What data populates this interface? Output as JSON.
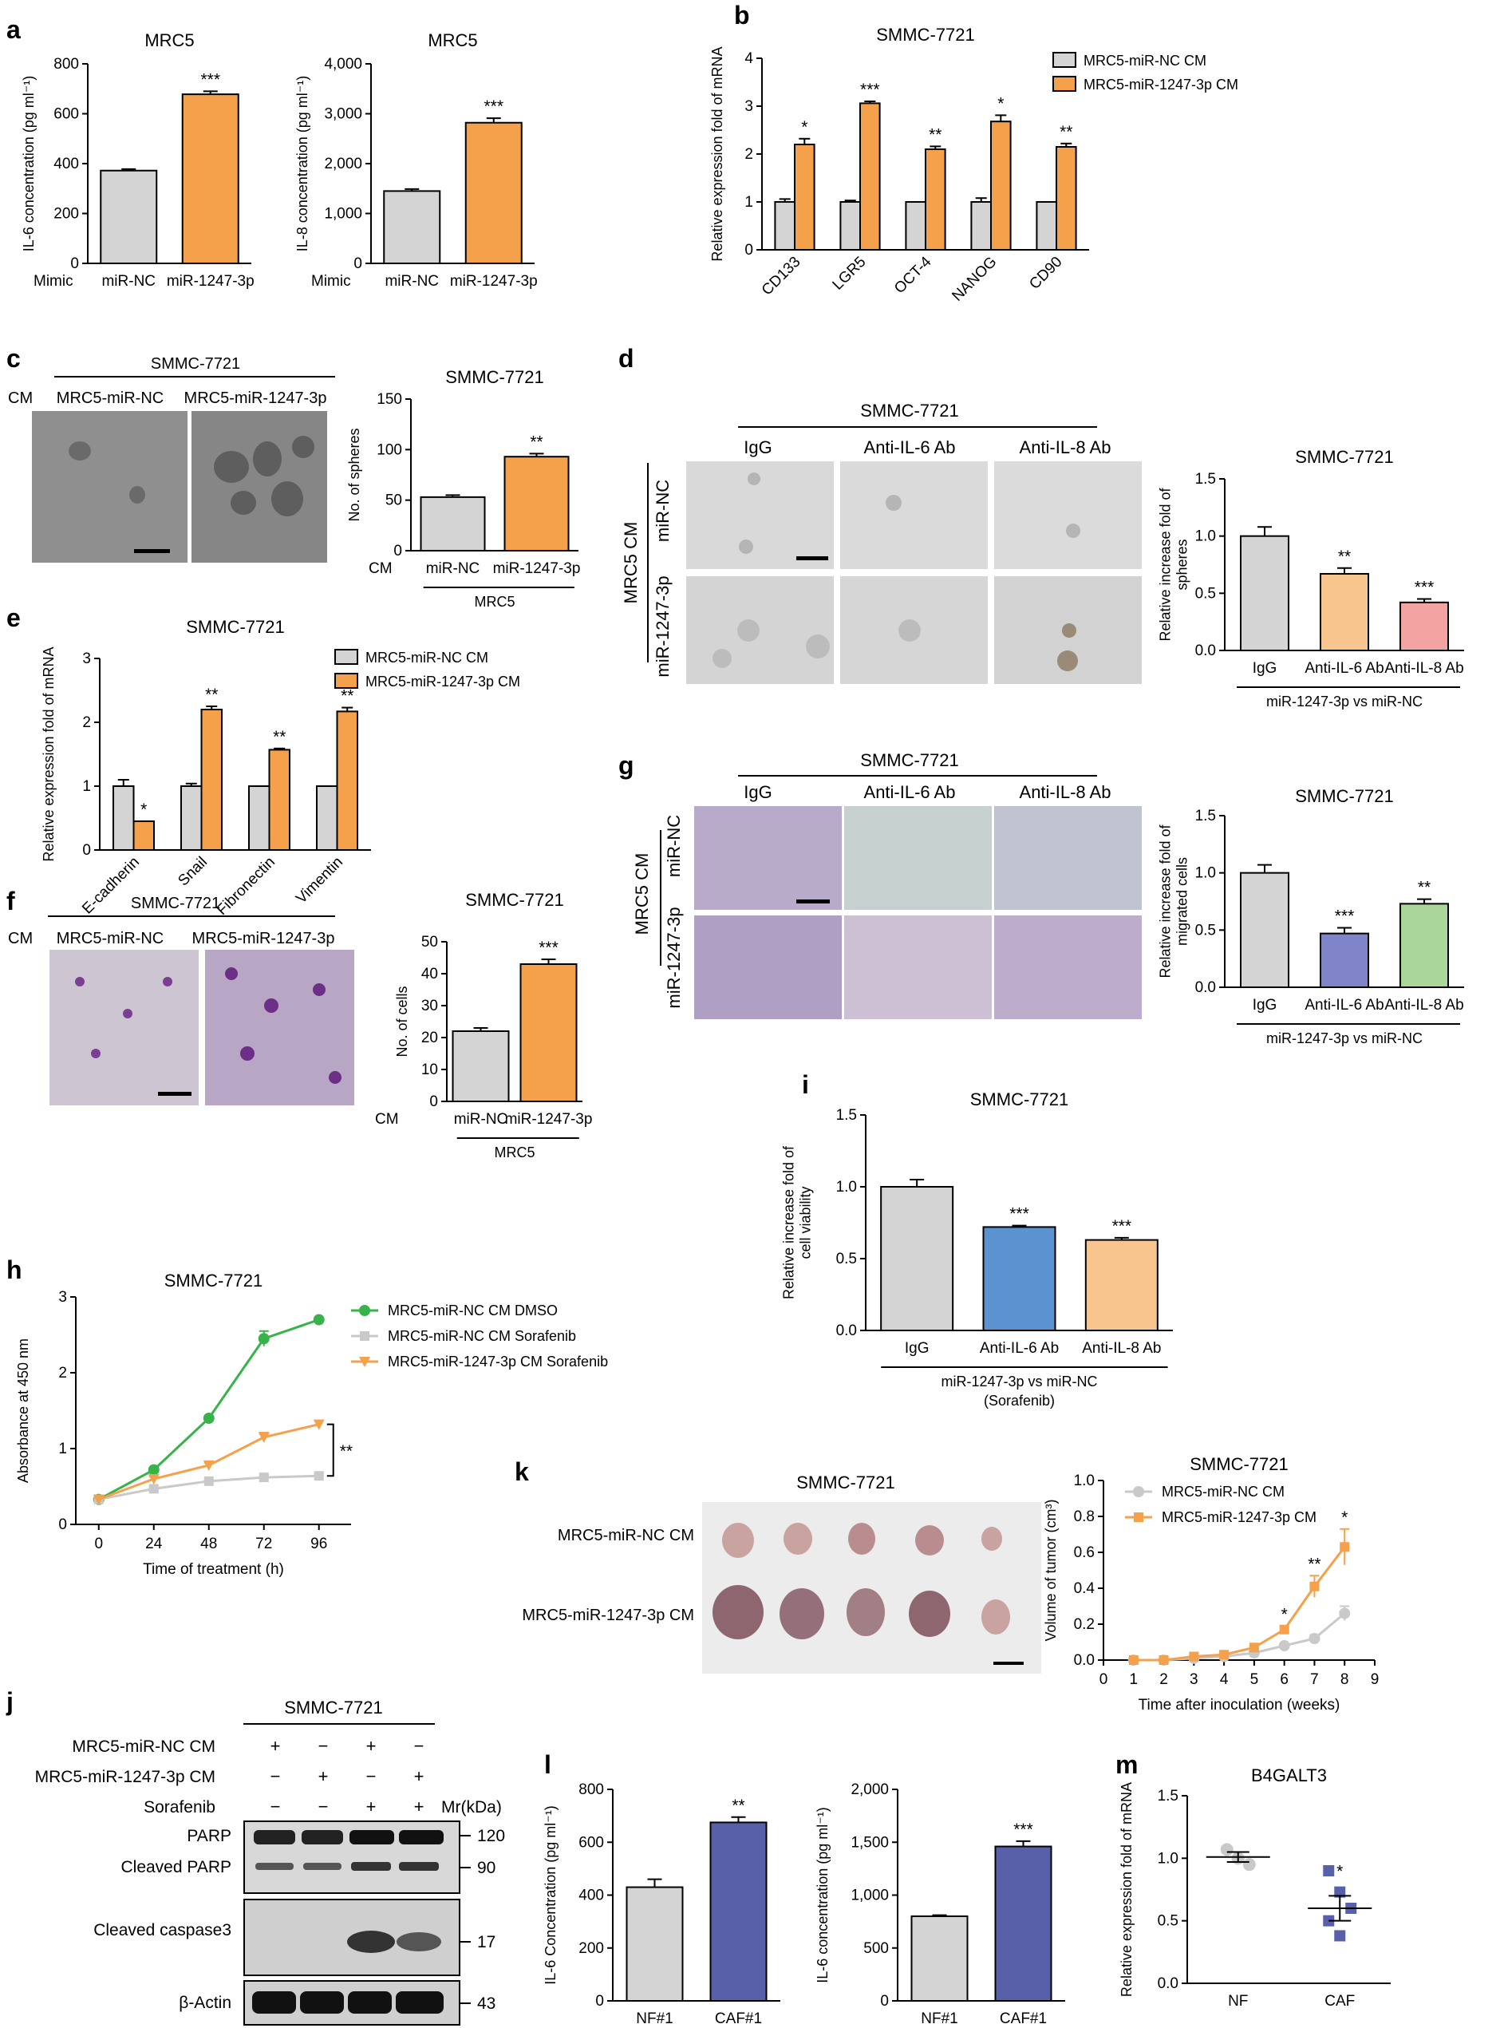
{
  "colors": {
    "gray": "#d4d4d4",
    "orange": "#f5a04a",
    "light_orange": "#f8c58f",
    "pink": "#f4a3a3",
    "blue": "#7f85c8",
    "green": "#a9d79a",
    "steel_blue": "#5b93d1",
    "navy": "#5760a8",
    "dmso_green": "#37b34a",
    "sor_gray": "#c9c9c9",
    "sor_orange": "#f5a04a"
  },
  "panels": {
    "a": "a",
    "b": "b",
    "c": "c",
    "d": "d",
    "e": "e",
    "f": "f",
    "g": "g",
    "h": "h",
    "i": "i",
    "j": "j",
    "k": "k",
    "l": "l",
    "m": "m"
  },
  "chart_data": [
    {
      "id": "a1",
      "type": "bar",
      "title": "MRC5",
      "ylabel": "IL-6 concentration (pg ml⁻¹)",
      "row_label": "Mimic",
      "categories": [
        "miR-NC",
        "miR-1247-3p"
      ],
      "values": [
        372,
        678
      ],
      "errors": [
        6,
        12
      ],
      "stars": [
        "",
        "***"
      ],
      "yticks": [
        "0",
        "200",
        "400",
        "600",
        "800"
      ],
      "ylim": [
        0,
        800
      ]
    },
    {
      "id": "a2",
      "type": "bar",
      "title": "MRC5",
      "ylabel": "IL-8 concentration (pg ml⁻¹)",
      "row_label": "Mimic",
      "categories": [
        "miR-NC",
        "miR-1247-3p"
      ],
      "values": [
        1450,
        2820
      ],
      "errors": [
        40,
        90
      ],
      "stars": [
        "",
        "***"
      ],
      "yticks": [
        "0",
        "1,000",
        "2,000",
        "3,000",
        "4,000"
      ],
      "ylim": [
        0,
        4000
      ]
    },
    {
      "id": "b",
      "type": "bar",
      "title": "SMMC-7721",
      "ylabel": "Relative expression fold of mRNA",
      "categories": [
        "CD133",
        "LGR5",
        "OCT-4",
        "NANOG",
        "CD90"
      ],
      "series": [
        {
          "name": "MRC5-miR-NC CM",
          "values": [
            1.0,
            1.0,
            1.0,
            1.0,
            1.0
          ],
          "errors": [
            0.06,
            0.03,
            0.0,
            0.08,
            0.0
          ]
        },
        {
          "name": "MRC5-miR-1247-3p CM",
          "values": [
            2.2,
            3.06,
            2.1,
            2.68,
            2.15
          ],
          "errors": [
            0.12,
            0.04,
            0.06,
            0.13,
            0.07
          ]
        }
      ],
      "stars": [
        "*",
        "***",
        "**",
        "*",
        "**"
      ],
      "yticks": [
        "0",
        "1",
        "2",
        "3",
        "4"
      ],
      "ylim": [
        0,
        4
      ]
    },
    {
      "id": "c",
      "type": "bar",
      "title": "SMMC-7721",
      "ylabel": "No. of spheres",
      "row_label": "CM",
      "categories": [
        "miR-NC",
        "miR-1247-3p"
      ],
      "values": [
        53,
        93
      ],
      "errors": [
        2,
        3
      ],
      "stars": [
        "",
        "**"
      ],
      "group_label": "MRC5",
      "yticks": [
        "0",
        "50",
        "100",
        "150"
      ],
      "ylim": [
        0,
        150
      ]
    },
    {
      "id": "d",
      "type": "bar",
      "title": "SMMC-7721",
      "ylabel": "Relative increase fold of spheres",
      "categories": [
        "IgG",
        "Anti-IL-6 Ab",
        "Anti-IL-8 Ab"
      ],
      "values": [
        1.0,
        0.67,
        0.42
      ],
      "errors": [
        0.08,
        0.05,
        0.03
      ],
      "stars": [
        "",
        "**",
        "***"
      ],
      "group_label": "miR-1247-3p vs miR-NC",
      "yticks": [
        "0.0",
        "0.5",
        "1.0",
        "1.5"
      ],
      "ylim": [
        0,
        1.5
      ]
    },
    {
      "id": "e",
      "type": "bar",
      "title": "SMMC-7721",
      "ylabel": "Relative expression fold of mRNA",
      "categories": [
        "E-cadherin",
        "Snail",
        "Fibronectin",
        "Vimentin"
      ],
      "series": [
        {
          "name": "MRC5-miR-NC CM",
          "values": [
            1.0,
            1.0,
            1.0,
            1.0
          ],
          "errors": [
            0.1,
            0.04,
            0.0,
            0.0
          ]
        },
        {
          "name": "MRC5-miR-1247-3p CM",
          "values": [
            0.45,
            2.2,
            1.57,
            2.17
          ],
          "errors": [
            0.0,
            0.05,
            0.02,
            0.06
          ]
        }
      ],
      "stars": [
        "*",
        "**",
        "**",
        "**"
      ],
      "yticks": [
        "0",
        "1",
        "2",
        "3"
      ],
      "ylim": [
        0,
        3
      ]
    },
    {
      "id": "f",
      "type": "bar",
      "title": "SMMC-7721",
      "ylabel": "No. of cells",
      "row_label": "CM",
      "categories": [
        "miR-NC",
        "miR-1247-3p"
      ],
      "values": [
        22,
        43
      ],
      "errors": [
        1,
        1.5
      ],
      "stars": [
        "",
        "***"
      ],
      "group_label": "MRC5",
      "yticks": [
        "0",
        "10",
        "20",
        "30",
        "40",
        "50"
      ],
      "ylim": [
        0,
        50
      ]
    },
    {
      "id": "g",
      "type": "bar",
      "title": "SMMC-7721",
      "ylabel": "Relative increase fold of migrated cells",
      "categories": [
        "IgG",
        "Anti-IL-6 Ab",
        "Anti-IL-8 Ab"
      ],
      "values": [
        1.0,
        0.47,
        0.73
      ],
      "errors": [
        0.07,
        0.05,
        0.04
      ],
      "stars": [
        "",
        "***",
        "**"
      ],
      "group_label": "miR-1247-3p vs miR-NC",
      "yticks": [
        "0.0",
        "0.5",
        "1.0",
        "1.5"
      ],
      "ylim": [
        0,
        1.5
      ]
    },
    {
      "id": "h",
      "type": "line",
      "title": "SMMC-7721",
      "xlabel": "Time of treatment (h)",
      "ylabel": "Absorbance at 450 nm",
      "x": [
        0,
        24,
        48,
        72,
        96
      ],
      "series": [
        {
          "name": "MRC5-miR-NC CM DMSO",
          "values": [
            0.33,
            0.72,
            1.4,
            2.45,
            2.7
          ],
          "errors": [
            0.03,
            0.03,
            0.03,
            0.1,
            0.03
          ]
        },
        {
          "name": "MRC5-miR-NC CM Sorafenib",
          "values": [
            0.33,
            0.47,
            0.57,
            0.62,
            0.64
          ],
          "errors": [
            0.02,
            0.02,
            0.02,
            0.03,
            0.03
          ]
        },
        {
          "name": "MRC5-miR-1247-3p CM Sorafenib",
          "values": [
            0.33,
            0.6,
            0.78,
            1.15,
            1.32
          ],
          "errors": [
            0.02,
            0.03,
            0.03,
            0.06,
            0.05
          ]
        }
      ],
      "annotation": "**",
      "xticks": [
        "0",
        "24",
        "48",
        "72",
        "96"
      ],
      "yticks": [
        "0",
        "1",
        "2",
        "3"
      ],
      "ylim": [
        0,
        3
      ]
    },
    {
      "id": "i",
      "type": "bar",
      "title": "SMMC-7721",
      "ylabel": "Relative increase fold of cell viability",
      "categories": [
        "IgG",
        "Anti-IL-6 Ab",
        "Anti-IL-8 Ab"
      ],
      "values": [
        1.0,
        0.72,
        0.63
      ],
      "errors": [
        0.05,
        0.01,
        0.015
      ],
      "stars": [
        "",
        "***",
        "***"
      ],
      "group_label": "miR-1247-3p vs miR-NC",
      "group_label2": "(Sorafenib)",
      "yticks": [
        "0.0",
        "0.5",
        "1.0",
        "1.5"
      ],
      "ylim": [
        0,
        1.5
      ]
    },
    {
      "id": "k",
      "type": "line",
      "title": "SMMC-7721",
      "xlabel": "Time after inoculation (weeks)",
      "ylabel": "Volume of tumor (cm³)",
      "x": [
        1,
        2,
        3,
        4,
        5,
        6,
        7,
        8
      ],
      "series": [
        {
          "name": "MRC5-miR-NC CM",
          "values": [
            0.0,
            0.0,
            0.01,
            0.02,
            0.04,
            0.08,
            0.12,
            0.26
          ],
          "errors": [
            0,
            0,
            0.005,
            0.005,
            0.01,
            0.01,
            0.02,
            0.04
          ]
        },
        {
          "name": "MRC5-miR-1247-3p CM",
          "values": [
            0.0,
            0.0,
            0.02,
            0.03,
            0.07,
            0.17,
            0.41,
            0.63
          ],
          "errors": [
            0,
            0,
            0.005,
            0.01,
            0.01,
            0.02,
            0.06,
            0.1
          ]
        }
      ],
      "stars": [
        "",
        "",
        "",
        "",
        "",
        "*",
        "**",
        "*"
      ],
      "xticks": [
        "0",
        "1",
        "2",
        "3",
        "4",
        "5",
        "6",
        "7",
        "8",
        "9"
      ],
      "yticks": [
        "0.0",
        "0.2",
        "0.4",
        "0.6",
        "0.8",
        "1.0"
      ],
      "ylim": [
        0,
        1.0
      ]
    },
    {
      "id": "l1",
      "type": "bar",
      "ylabel": "IL-6 Concentration (pg ml⁻¹)",
      "categories": [
        "NF#1",
        "CAF#1"
      ],
      "values": [
        430,
        675
      ],
      "errors": [
        30,
        20
      ],
      "stars": [
        "",
        "**"
      ],
      "yticks": [
        "0",
        "200",
        "400",
        "600",
        "800"
      ],
      "ylim": [
        0,
        800
      ]
    },
    {
      "id": "l2",
      "type": "bar",
      "ylabel": "IL-6 concentration (pg ml⁻¹)",
      "categories": [
        "NF#1",
        "CAF#1"
      ],
      "values": [
        800,
        1460
      ],
      "errors": [
        10,
        50
      ],
      "stars": [
        "",
        "***"
      ],
      "yticks": [
        "0",
        "500",
        "1,000",
        "1,500",
        "2,000"
      ],
      "ylim": [
        0,
        2000
      ]
    },
    {
      "id": "m",
      "type": "scatter",
      "title": "B4GALT3",
      "ylabel": "Relative expression fold of mRNA",
      "categories": [
        "NF",
        "CAF"
      ],
      "points": [
        [
          1.07,
          1.0,
          0.95
        ],
        [
          0.9,
          0.73,
          0.6,
          0.5,
          0.38
        ]
      ],
      "means": [
        1.01,
        0.6
      ],
      "sem": [
        0.04,
        0.1
      ],
      "stars": [
        "",
        "*"
      ],
      "yticks": [
        "0.0",
        "0.5",
        "1.0",
        "1.5"
      ],
      "ylim": [
        0,
        1.5
      ]
    }
  ],
  "images": {
    "c": {
      "title": "SMMC-7721",
      "row_label": "CM",
      "cols": [
        "MRC5-miR-NC",
        "MRC5-miR-1247-3p"
      ]
    },
    "d": {
      "title": "SMMC-7721",
      "cols": [
        "IgG",
        "Anti-IL-6 Ab",
        "Anti-IL-8 Ab"
      ],
      "rows": [
        "miR-NC",
        "miR-1247-3p"
      ],
      "side": "MRC5 CM"
    },
    "f": {
      "title": "SMMC-7721",
      "row_label": "CM",
      "cols": [
        "MRC5-miR-NC",
        "MRC5-miR-1247-3p"
      ]
    },
    "g": {
      "title": "SMMC-7721",
      "cols": [
        "IgG",
        "Anti-IL-6 Ab",
        "Anti-IL-8 Ab"
      ],
      "rows": [
        "miR-NC",
        "miR-1247-3p"
      ],
      "side": "MRC5 CM"
    },
    "k": {
      "title": "SMMC-7721",
      "rows": [
        "MRC5-miR-NC CM",
        "MRC5-miR-1247-3p CM"
      ]
    }
  },
  "blot": {
    "title": "SMMC-7721",
    "conditions": [
      {
        "label": "MRC5-miR-NC CM",
        "marks": [
          "+",
          "−",
          "+",
          "−"
        ]
      },
      {
        "label": "MRC5-miR-1247-3p CM",
        "marks": [
          "−",
          "+",
          "−",
          "+"
        ]
      },
      {
        "label": "Sorafenib",
        "marks": [
          "−",
          "−",
          "+",
          "+"
        ]
      }
    ],
    "mr_header": "Mr(kDa)",
    "bands": [
      {
        "label": "PARP",
        "mr": "120"
      },
      {
        "label": "Cleaved PARP",
        "mr": "90"
      },
      {
        "label": "Cleaved caspase3",
        "mr": "17"
      },
      {
        "label": "β-Actin",
        "mr": "43"
      }
    ]
  }
}
